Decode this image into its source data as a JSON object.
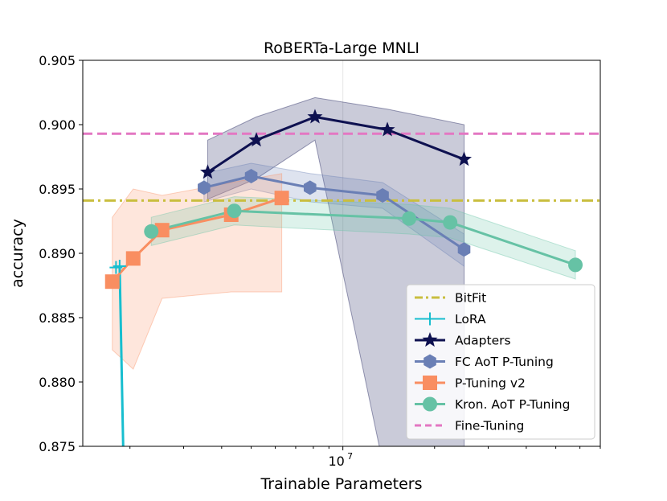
{
  "chart_data": {
    "type": "line",
    "title": "RoBERTa-Large MNLI",
    "xlabel": "Trainable Parameters",
    "ylabel": "accuracy",
    "xscale": "log",
    "xlim": [
      1400000.0,
      70000000.0
    ],
    "ylim": [
      0.875,
      0.905
    ],
    "yticks": [
      {
        "value": 0.875,
        "label": "0.875"
      },
      {
        "value": 0.88,
        "label": "0.880"
      },
      {
        "value": 0.885,
        "label": "0.885"
      },
      {
        "value": 0.89,
        "label": "0.890"
      },
      {
        "value": 0.895,
        "label": "0.895"
      },
      {
        "value": 0.9,
        "label": "0.900"
      },
      {
        "value": 0.905,
        "label": "0.905"
      }
    ],
    "xtick_major": {
      "value": 10000000,
      "base": "10",
      "exp": "7"
    },
    "grid": true,
    "legend_position": "lower-right",
    "hlines": [
      {
        "name": "BitFit",
        "y": 0.8941,
        "color": "#c9be3f",
        "dash": "dashdot"
      },
      {
        "name": "Fine-Tuning",
        "y": 0.8993,
        "color": "#e377c2",
        "dash": "dashed"
      }
    ],
    "series": [
      {
        "name": "LoRA",
        "color": "#17becf",
        "marker": "plus",
        "x": [
          1800000.0,
          1850000.0,
          1900000.0
        ],
        "y": [
          0.8889,
          0.889,
          0.875
        ]
      },
      {
        "name": "Adapters",
        "color": "#0e1150",
        "marker": "star",
        "x": [
          3600000.0,
          5200000.0,
          8100000.0,
          14000000.0,
          25000000.0
        ],
        "y": [
          0.8963,
          0.8988,
          0.9006,
          0.8996,
          0.8973
        ],
        "band_upper": [
          0.8988,
          0.9006,
          0.9021,
          0.9012,
          0.9
        ],
        "band_lower": [
          0.8942,
          0.8958,
          0.8988,
          0.872,
          0.872
        ]
      },
      {
        "name": "FC AoT P-Tuning",
        "color": "#6a7fb5",
        "marker": "hexagon",
        "x": [
          3500000.0,
          5000000.0,
          7800000.0,
          13500000.0,
          25000000.0
        ],
        "y": [
          0.8951,
          0.896,
          0.8951,
          0.8945,
          0.8903
        ],
        "band_upper": [
          0.8962,
          0.897,
          0.8962,
          0.8955,
          0.8915
        ],
        "band_lower": [
          0.894,
          0.895,
          0.894,
          0.8935,
          0.889
        ]
      },
      {
        "name": "P-Tuning v2",
        "color": "#f98e61",
        "marker": "square",
        "x": [
          1750000.0,
          2050000.0,
          2550000.0,
          4300000.0,
          6300000.0
        ],
        "y": [
          0.8878,
          0.8896,
          0.8918,
          0.893,
          0.8943
        ],
        "band_upper": [
          0.8928,
          0.895,
          0.8945,
          0.8955,
          0.8962
        ],
        "band_lower": [
          0.8825,
          0.881,
          0.8865,
          0.887,
          0.887
        ]
      },
      {
        "name": "Kron. AoT P-Tuning",
        "color": "#66c2a5",
        "marker": "circle",
        "x": [
          2350000.0,
          4400000.0,
          16500000.0,
          22500000.0,
          58000000.0
        ],
        "y": [
          0.8917,
          0.8933,
          0.8927,
          0.8924,
          0.8891
        ],
        "band_upper": [
          0.8928,
          0.8944,
          0.8938,
          0.8935,
          0.8902
        ],
        "band_lower": [
          0.8906,
          0.8922,
          0.8915,
          0.8912,
          0.888
        ]
      }
    ],
    "legend": [
      "BitFit",
      "LoRA",
      "Adapters",
      "FC AoT P-Tuning",
      "P-Tuning v2",
      "Kron. AoT P-Tuning",
      "Fine-Tuning"
    ]
  }
}
